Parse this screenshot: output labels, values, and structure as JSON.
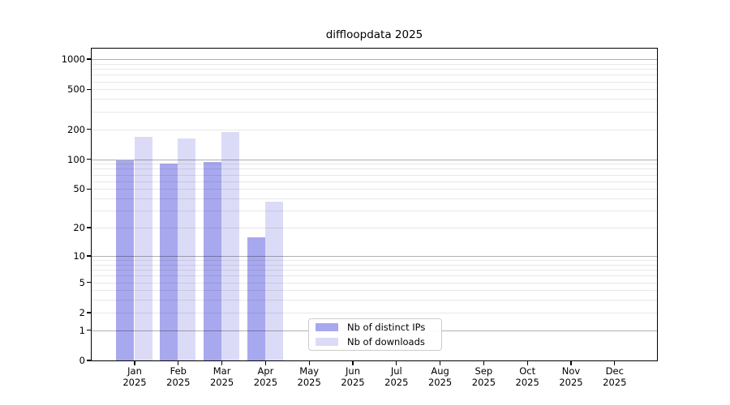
{
  "chart_data": {
    "type": "bar",
    "title": "diffloopdata 2025",
    "categories": [
      "Jan",
      "Feb",
      "Mar",
      "Apr",
      "May",
      "Jun",
      "Jul",
      "Aug",
      "Sep",
      "Oct",
      "Nov",
      "Dec"
    ],
    "year": "2025",
    "series": [
      {
        "name": "Nb of distinct IPs",
        "key": "distinct-ips",
        "color": "#a8a8ee",
        "values": [
          98,
          91,
          94,
          16,
          null,
          null,
          null,
          null,
          null,
          null,
          null,
          null
        ]
      },
      {
        "name": "Nb of downloads",
        "key": "downloads",
        "color": "#dbdbf8",
        "values": [
          168,
          162,
          186,
          37,
          null,
          null,
          null,
          null,
          null,
          null,
          null,
          null
        ]
      }
    ],
    "y_ticks": [
      0,
      1,
      2,
      5,
      10,
      20,
      50,
      100,
      200,
      500,
      1000
    ],
    "y_major_gridlines": [
      1,
      10,
      100,
      1000
    ],
    "y_scale": "log10(value+1)",
    "ylim": [
      0,
      1000
    ],
    "grid": "on",
    "legend_position": "inside-bottom-center"
  },
  "colors": {
    "bar_ips": "#a8a8ee",
    "bar_downloads": "#dbdbf8",
    "grid_major": "rgba(0,0,0,0.31)",
    "grid_minor": "rgba(0,0,0,0.09)",
    "frame": "#000000",
    "text": "#000000",
    "legend_border": "#cccccc"
  }
}
